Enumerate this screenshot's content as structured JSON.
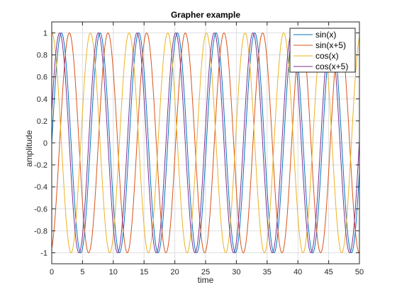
{
  "chart_data": {
    "type": "line",
    "title": "Grapher example",
    "xlabel": "time",
    "ylabel": "amplitude",
    "xlim": [
      0,
      50
    ],
    "ylim": [
      -1.1,
      1.1
    ],
    "xticks": [
      0,
      5,
      10,
      15,
      20,
      25,
      30,
      35,
      40,
      45,
      50
    ],
    "xtick_labels": [
      "0",
      "5",
      "10",
      "15",
      "20",
      "25",
      "30",
      "35",
      "40",
      "45",
      "50"
    ],
    "yticks": [
      -1,
      -0.8,
      -0.6,
      -0.4,
      -0.2,
      0,
      0.2,
      0.4,
      0.6,
      0.8,
      1
    ],
    "ytick_labels": [
      "-1",
      "-0.8",
      "-0.6",
      "-0.4",
      "-0.2",
      "0",
      "0.2",
      "0.4",
      "0.6",
      "0.8",
      "1"
    ],
    "grid": true,
    "legend_position": "top-right",
    "series": [
      {
        "name": "sin(x)",
        "expression": "sin(x)",
        "phase": 0,
        "func": "sin",
        "color": "#0072BD"
      },
      {
        "name": "sin(x+5)",
        "expression": "sin(x+5)",
        "phase": 5,
        "func": "sin",
        "color": "#D95319"
      },
      {
        "name": "cos(x)",
        "expression": "cos(x)",
        "phase": 0,
        "func": "cos",
        "color": "#EDB120"
      },
      {
        "name": "cos(x+5)",
        "expression": "cos(x+5)",
        "phase": 5,
        "func": "cos",
        "color": "#7E2F8E"
      }
    ]
  }
}
